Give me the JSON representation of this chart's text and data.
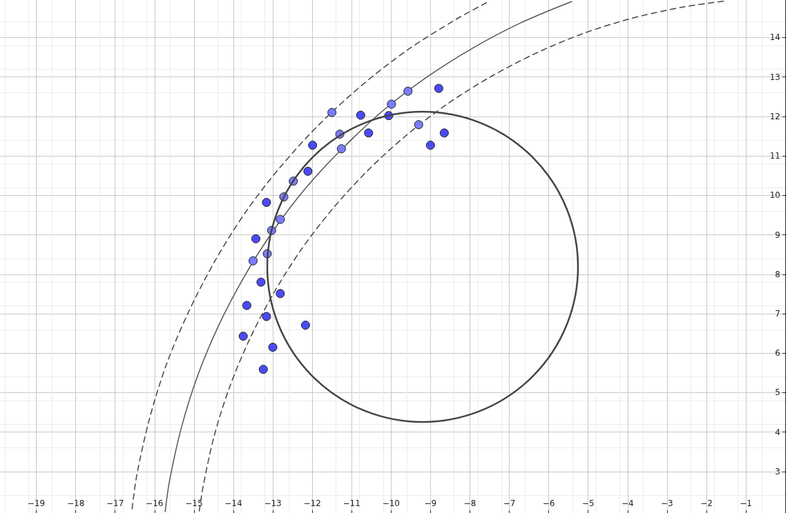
{
  "chart_data": {
    "type": "scatter",
    "xlim": [
      -19.92,
      0.05
    ],
    "ylim": [
      1.95,
      14.95
    ],
    "xticks": [
      -19,
      -18,
      -17,
      -16,
      -15,
      -14,
      -13,
      -12,
      -11,
      -10,
      -9,
      -8,
      -7,
      -6,
      -5,
      -4,
      -3,
      -2,
      -1
    ],
    "yticks": [
      3,
      4,
      5,
      6,
      7,
      8,
      9,
      10,
      11,
      12,
      13,
      14
    ],
    "grid": true,
    "series": [
      {
        "type": "line",
        "color": "#444444",
        "line_style": "dashed",
        "marker": "none",
        "x": [
          -7.58,
          -8.35,
          -9.59,
          -10.74,
          -11.81,
          -12.79,
          -13.68,
          -14.46,
          -15.13,
          -15.7,
          -16.13,
          -16.45,
          -16.57
        ],
        "values": [
          14.88,
          14.46,
          13.68,
          12.79,
          11.81,
          10.74,
          9.59,
          8.35,
          7.06,
          5.71,
          4.33,
          2.91,
          2.04
        ]
      },
      {
        "type": "line",
        "color": "#555555",
        "line_style": "solid",
        "marker": "none",
        "x": [
          -5.42,
          -6.71,
          -7.93,
          -9.1,
          -10.2,
          -11.21,
          -12.15,
          -12.99,
          -13.73,
          -14.37,
          -14.91,
          -15.32,
          -15.62,
          -15.73
        ],
        "values": [
          14.91,
          14.37,
          13.73,
          12.99,
          12.15,
          11.21,
          10.2,
          9.1,
          7.93,
          6.71,
          5.42,
          4.11,
          2.76,
          1.98
        ]
      },
      {
        "type": "line",
        "color": "#444444",
        "line_style": "dashed",
        "marker": "none",
        "x": [
          -1.57,
          -2.6,
          -3.88,
          -5.13,
          -6.35,
          -7.5,
          -8.61,
          -9.65,
          -10.61,
          -11.49,
          -12.29,
          -12.99,
          -13.59,
          -14.1,
          -14.49,
          -14.77,
          -14.87
        ],
        "values": [
          14.92,
          14.77,
          14.49,
          14.1,
          13.59,
          12.99,
          12.29,
          11.49,
          10.61,
          9.65,
          8.61,
          7.5,
          6.35,
          5.13,
          3.89,
          2.61,
          1.96
        ]
      },
      {
        "type": "scatter",
        "color": "#7b7bff",
        "marker": "circle",
        "x": [
          -11.5,
          -11.3,
          -11.26,
          -12.48,
          -12.72,
          -12.81,
          -13.03,
          -13.14,
          -13.5,
          -9.99,
          -9.57,
          -9.3
        ],
        "values": [
          12.1,
          11.55,
          11.18,
          10.36,
          9.96,
          9.39,
          9.11,
          8.52,
          8.34,
          12.31,
          12.64,
          11.79
        ]
      },
      {
        "type": "scatter",
        "color": "#4b4bf5",
        "marker": "circle",
        "x": [
          -10.77,
          -10.06,
          -10.57,
          -8.79,
          -8.65,
          -9.0,
          -11.99,
          -12.11,
          -13.16,
          -13.43,
          -13.3,
          -12.81,
          -13.66,
          -13.16,
          -12.17,
          -13.75,
          -13.0,
          -13.24
        ],
        "values": [
          12.03,
          12.02,
          11.58,
          12.71,
          11.58,
          11.27,
          11.27,
          10.61,
          9.82,
          8.9,
          7.8,
          7.51,
          7.21,
          6.93,
          6.71,
          6.43,
          6.15,
          5.59
        ]
      }
    ]
  }
}
